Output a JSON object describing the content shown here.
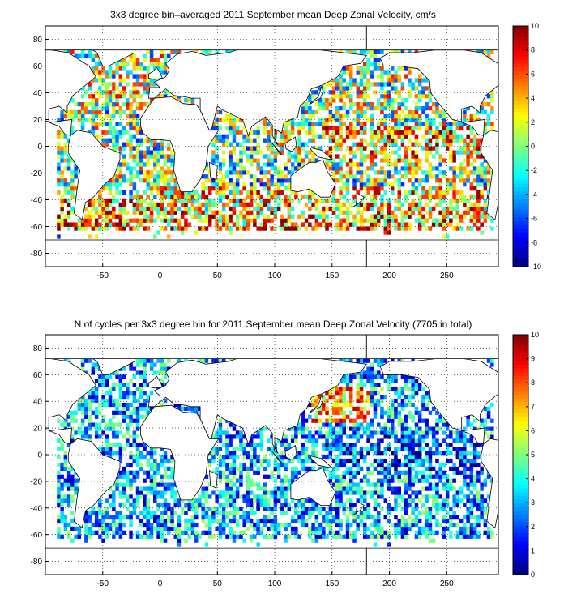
{
  "chart_data": [
    {
      "type": "heatmap",
      "title": "3x3 degree bin–averaged 2011 September mean Deep Zonal Velocity, cm/s",
      "xlabel": "",
      "ylabel": "",
      "xlim": [
        -100,
        295
      ],
      "ylim": [
        -90,
        90
      ],
      "x_ticks": [
        -50,
        0,
        50,
        100,
        150,
        200,
        250
      ],
      "y_ticks": [
        80,
        60,
        40,
        20,
        0,
        -20,
        -40,
        -60,
        -80
      ],
      "grid": true,
      "bin_size_deg": 3,
      "colorbar": {
        "min": -10,
        "max": 10,
        "colormap": "jet",
        "ticks": [
          10,
          8,
          6,
          4,
          2,
          0,
          -2,
          -4,
          -6,
          -8,
          -10
        ]
      },
      "band_means": [
        {
          "lat": 60,
          "lon_from": -80,
          "lon_to": 40,
          "value": 1
        },
        {
          "lat": 40,
          "lon_from": -80,
          "lon_to": -10,
          "value": 3
        },
        {
          "lat": 30,
          "lon_from": 120,
          "lon_to": 260,
          "value": 1
        },
        {
          "lat": 0,
          "lon_from": 150,
          "lon_to": 270,
          "value": 6
        },
        {
          "lat": -20,
          "lon_from": 30,
          "lon_to": 110,
          "value": -1
        },
        {
          "lat": -45,
          "lon_from": 10,
          "lon_to": 290,
          "value": 5
        },
        {
          "lat": -55,
          "lon_from": -90,
          "lon_to": 290,
          "value": 7
        }
      ]
    },
    {
      "type": "heatmap",
      "title": "N of cycles per 3x3 degree bin for 2011 September mean Deep Zonal Velocity (7705 in total)",
      "xlabel": "",
      "ylabel": "",
      "xlim": [
        -100,
        295
      ],
      "ylim": [
        -90,
        90
      ],
      "x_ticks": [
        -50,
        0,
        50,
        100,
        150,
        200,
        250
      ],
      "y_ticks": [
        80,
        60,
        40,
        20,
        0,
        -20,
        -40,
        -60,
        -80
      ],
      "grid": true,
      "bin_size_deg": 3,
      "colorbar": {
        "min": 0,
        "max": 10,
        "colormap": "jet",
        "ticks": [
          10,
          9,
          8,
          7,
          6,
          5,
          4,
          3,
          2,
          1,
          0
        ]
      },
      "band_means": [
        {
          "lat": 60,
          "lon_from": -80,
          "lon_to": 40,
          "value": 3
        },
        {
          "lat": 35,
          "lon_from": 140,
          "lon_to": 170,
          "value": 7
        },
        {
          "lat": 0,
          "lon_from": 150,
          "lon_to": 270,
          "value": 2
        },
        {
          "lat": -40,
          "lon_from": -60,
          "lon_to": 290,
          "value": 3
        }
      ]
    }
  ],
  "colors": {
    "land_fill": "#ffffff",
    "coastline": "#000000",
    "background": "#ffffff"
  }
}
